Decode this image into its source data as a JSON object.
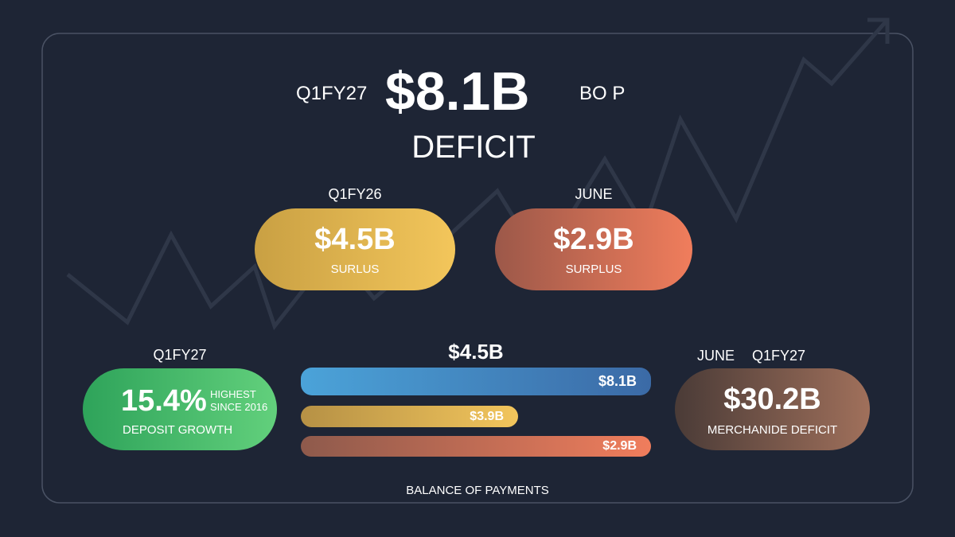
{
  "header": {
    "period": "Q1FY27",
    "value": "$8.1B",
    "label": "BO P",
    "status": "DEFICIT"
  },
  "top_cards": [
    {
      "period": "Q1FY26",
      "value": "$4.5B",
      "label": "SURLUS"
    },
    {
      "period": "JUNE",
      "value": "$2.9B",
      "label": "SURPLUS"
    }
  ],
  "left_card": {
    "period": "Q1FY27",
    "value": "15.4%",
    "note": [
      "HIGHEST",
      "SINCE 2016"
    ],
    "label": "DEPOSIT GROWTH"
  },
  "bars": {
    "title": "$4.5B",
    "items": [
      "$8.1B",
      "$3.9B",
      "$2.9B"
    ]
  },
  "right_card": {
    "periods": [
      "JUNE",
      "Q1FY27"
    ],
    "value": "$30.2B",
    "label": "MERCHANIDE DEFICIT"
  },
  "footer": "BALANCE OF PAYMENTS"
}
